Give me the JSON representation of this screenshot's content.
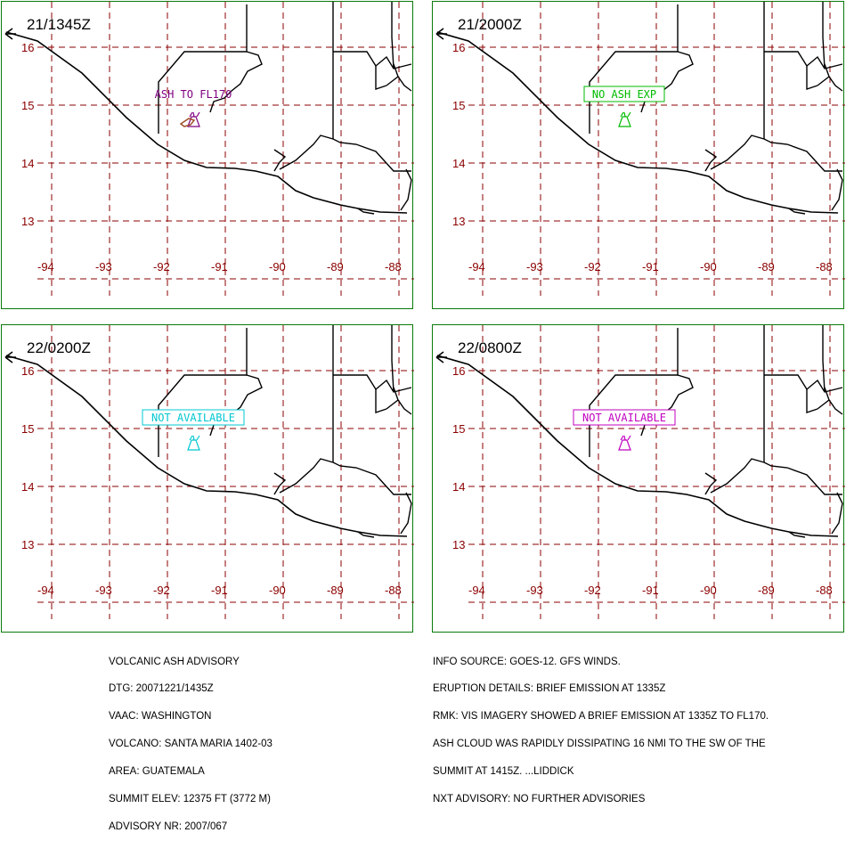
{
  "panels": [
    {
      "time": "21/1345Z",
      "label": "ASH TO FL170",
      "label_color": "#800080",
      "label_box": false,
      "ash_polygon": true
    },
    {
      "time": "21/2000Z",
      "label": "NO ASH EXP",
      "label_color": "#00bb00",
      "label_box": true,
      "ash_polygon": false
    },
    {
      "time": "22/0200Z",
      "label": "NOT AVAILABLE",
      "label_color": "#00c8d0",
      "label_box": true,
      "ash_polygon": false
    },
    {
      "time": "22/0800Z",
      "label": "NOT AVAILABLE",
      "label_color": "#c000c0",
      "label_box": true,
      "ash_polygon": false
    }
  ],
  "map": {
    "lat_labels": [
      "16",
      "15",
      "14",
      "13"
    ],
    "lon_labels": [
      "-94",
      "-93",
      "-92",
      "-91",
      "-90",
      "-89",
      "-88"
    ],
    "colors": {
      "grid": "#8b0000",
      "lat_label": "#8b0000",
      "lon_label": "#8b0000",
      "coast": "#000000",
      "border": "#008000",
      "ash_outline": "#a0522d"
    }
  },
  "advisory_left": [
    "VOLCANIC ASH ADVISORY",
    "DTG: 20071221/1435Z",
    "VAAC: WASHINGTON",
    "VOLCANO: SANTA MARIA 1402-03",
    "AREA: GUATEMALA",
    "SUMMIT ELEV: 12375 FT (3772 M)",
    "ADVISORY NR: 2007/067"
  ],
  "advisory_right": [
    "INFO SOURCE: GOES-12. GFS WINDS.",
    "ERUPTION DETAILS: BRIEF EMISSION AT 1335Z",
    "RMK: VIS IMAGERY SHOWED A BRIEF EMISSION AT 1335Z TO FL170.",
    "ASH CLOUD WAS RAPIDLY DISSIPATING 16 NMI TO THE SW OF THE",
    "SUMMIT AT 1415Z. ...LIDDICK",
    "NXT ADVISORY: NO FURTHER ADVISORIES"
  ]
}
